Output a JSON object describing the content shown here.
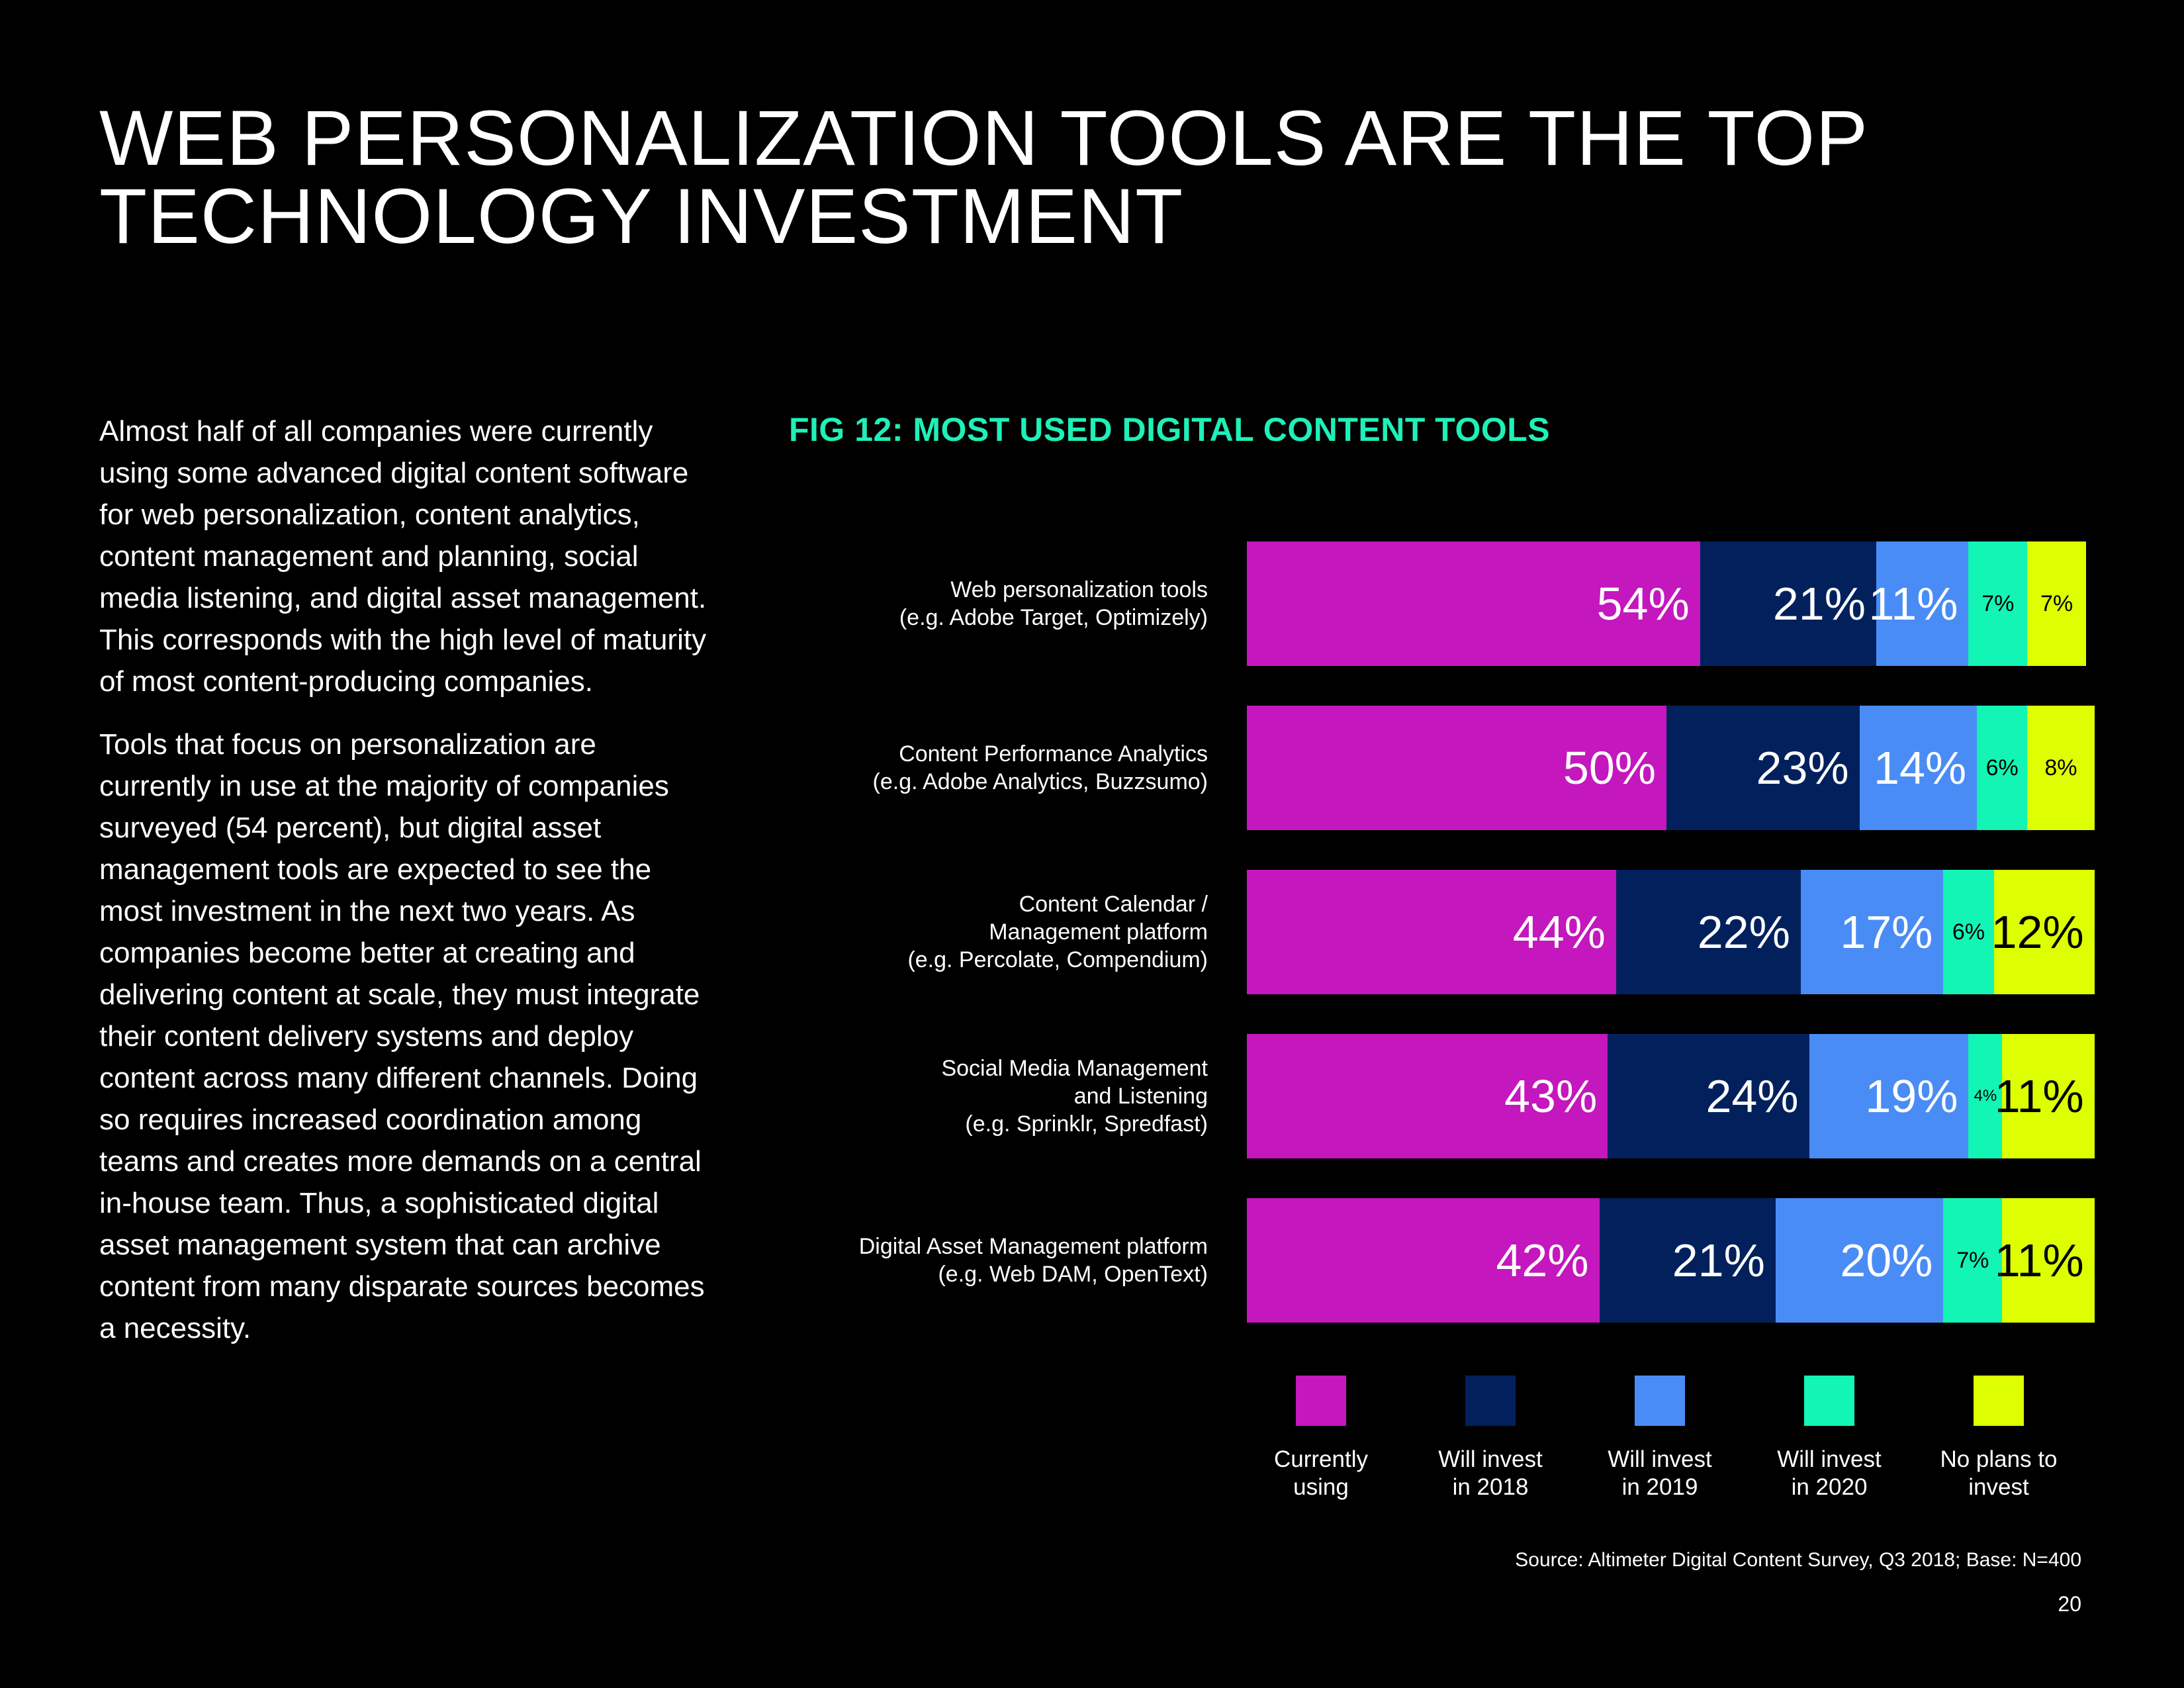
{
  "page": {
    "title_lines": [
      "WEB PERSONALIZATION TOOLS ARE THE TOP",
      "TECHNOLOGY INVESTMENT"
    ],
    "paragraphs": [
      "Almost half of all companies were currently using some advanced digital content software for web personalization, content analytics, content management and planning, social media listening, and digital asset management. This corresponds with the high level of maturity of most content-producing companies.",
      "Tools that focus on personalization are currently in use at the majority of companies surveyed (54 percent), but digital asset management tools are expected to see the most investment in the next two years. As companies become better at creating and delivering content at scale, they must integrate their content delivery systems and deploy content across many different channels. Doing so requires increased coordination among teams and creates more demands on a central in-house team. Thus, a sophisticated digital asset management system that can archive content from many disparate sources becomes a necessity."
    ],
    "source": "Source: Altimeter Digital Content Survey, Q3 2018; Base: N=400",
    "page_number": "20"
  },
  "chart_data": {
    "type": "bar",
    "orientation": "horizontal",
    "stacked": true,
    "title": "FIG 12: MOST USED DIGITAL CONTENT TOOLS",
    "categories": [
      [
        "Web personalization tools",
        "(e.g. Adobe Target, Optimizely)"
      ],
      [
        "Content Performance Analytics",
        "(e.g. Adobe Analytics, Buzzsumo)"
      ],
      [
        "Content Calendar /",
        "Management platform",
        "(e.g. Percolate, Compendium)"
      ],
      [
        "Social Media Management",
        "and Listening",
        "(e.g. Sprinklr, Spredfast)"
      ],
      [
        "Digital Asset Management platform",
        "(e.g. Web DAM, OpenText)"
      ]
    ],
    "series": [
      {
        "name": "Currently using",
        "legend_lines": [
          "Currently",
          "using"
        ],
        "color": "#c417bd",
        "values": [
          54,
          50,
          44,
          43,
          42
        ]
      },
      {
        "name": "Will invest in 2018",
        "legend_lines": [
          "Will invest",
          "in 2018"
        ],
        "color": "#02215c",
        "values": [
          21,
          23,
          22,
          24,
          21
        ]
      },
      {
        "name": "Will invest in 2019",
        "legend_lines": [
          "Will invest",
          "in 2019"
        ],
        "color": "#4a8cf5",
        "values": [
          11,
          14,
          17,
          19,
          20
        ]
      },
      {
        "name": "Will invest in 2020",
        "legend_lines": [
          "Will invest",
          "in 2020"
        ],
        "color": "#12f5b4",
        "values": [
          7,
          6,
          6,
          4,
          7
        ]
      },
      {
        "name": "No plans to invest",
        "legend_lines": [
          "No plans to",
          "invest"
        ],
        "color": "#ddff00",
        "values": [
          7,
          8,
          12,
          11,
          11
        ]
      }
    ],
    "value_suffix": "%",
    "xlim": [
      0,
      100
    ],
    "legend_position": "bottom",
    "grid": false
  }
}
